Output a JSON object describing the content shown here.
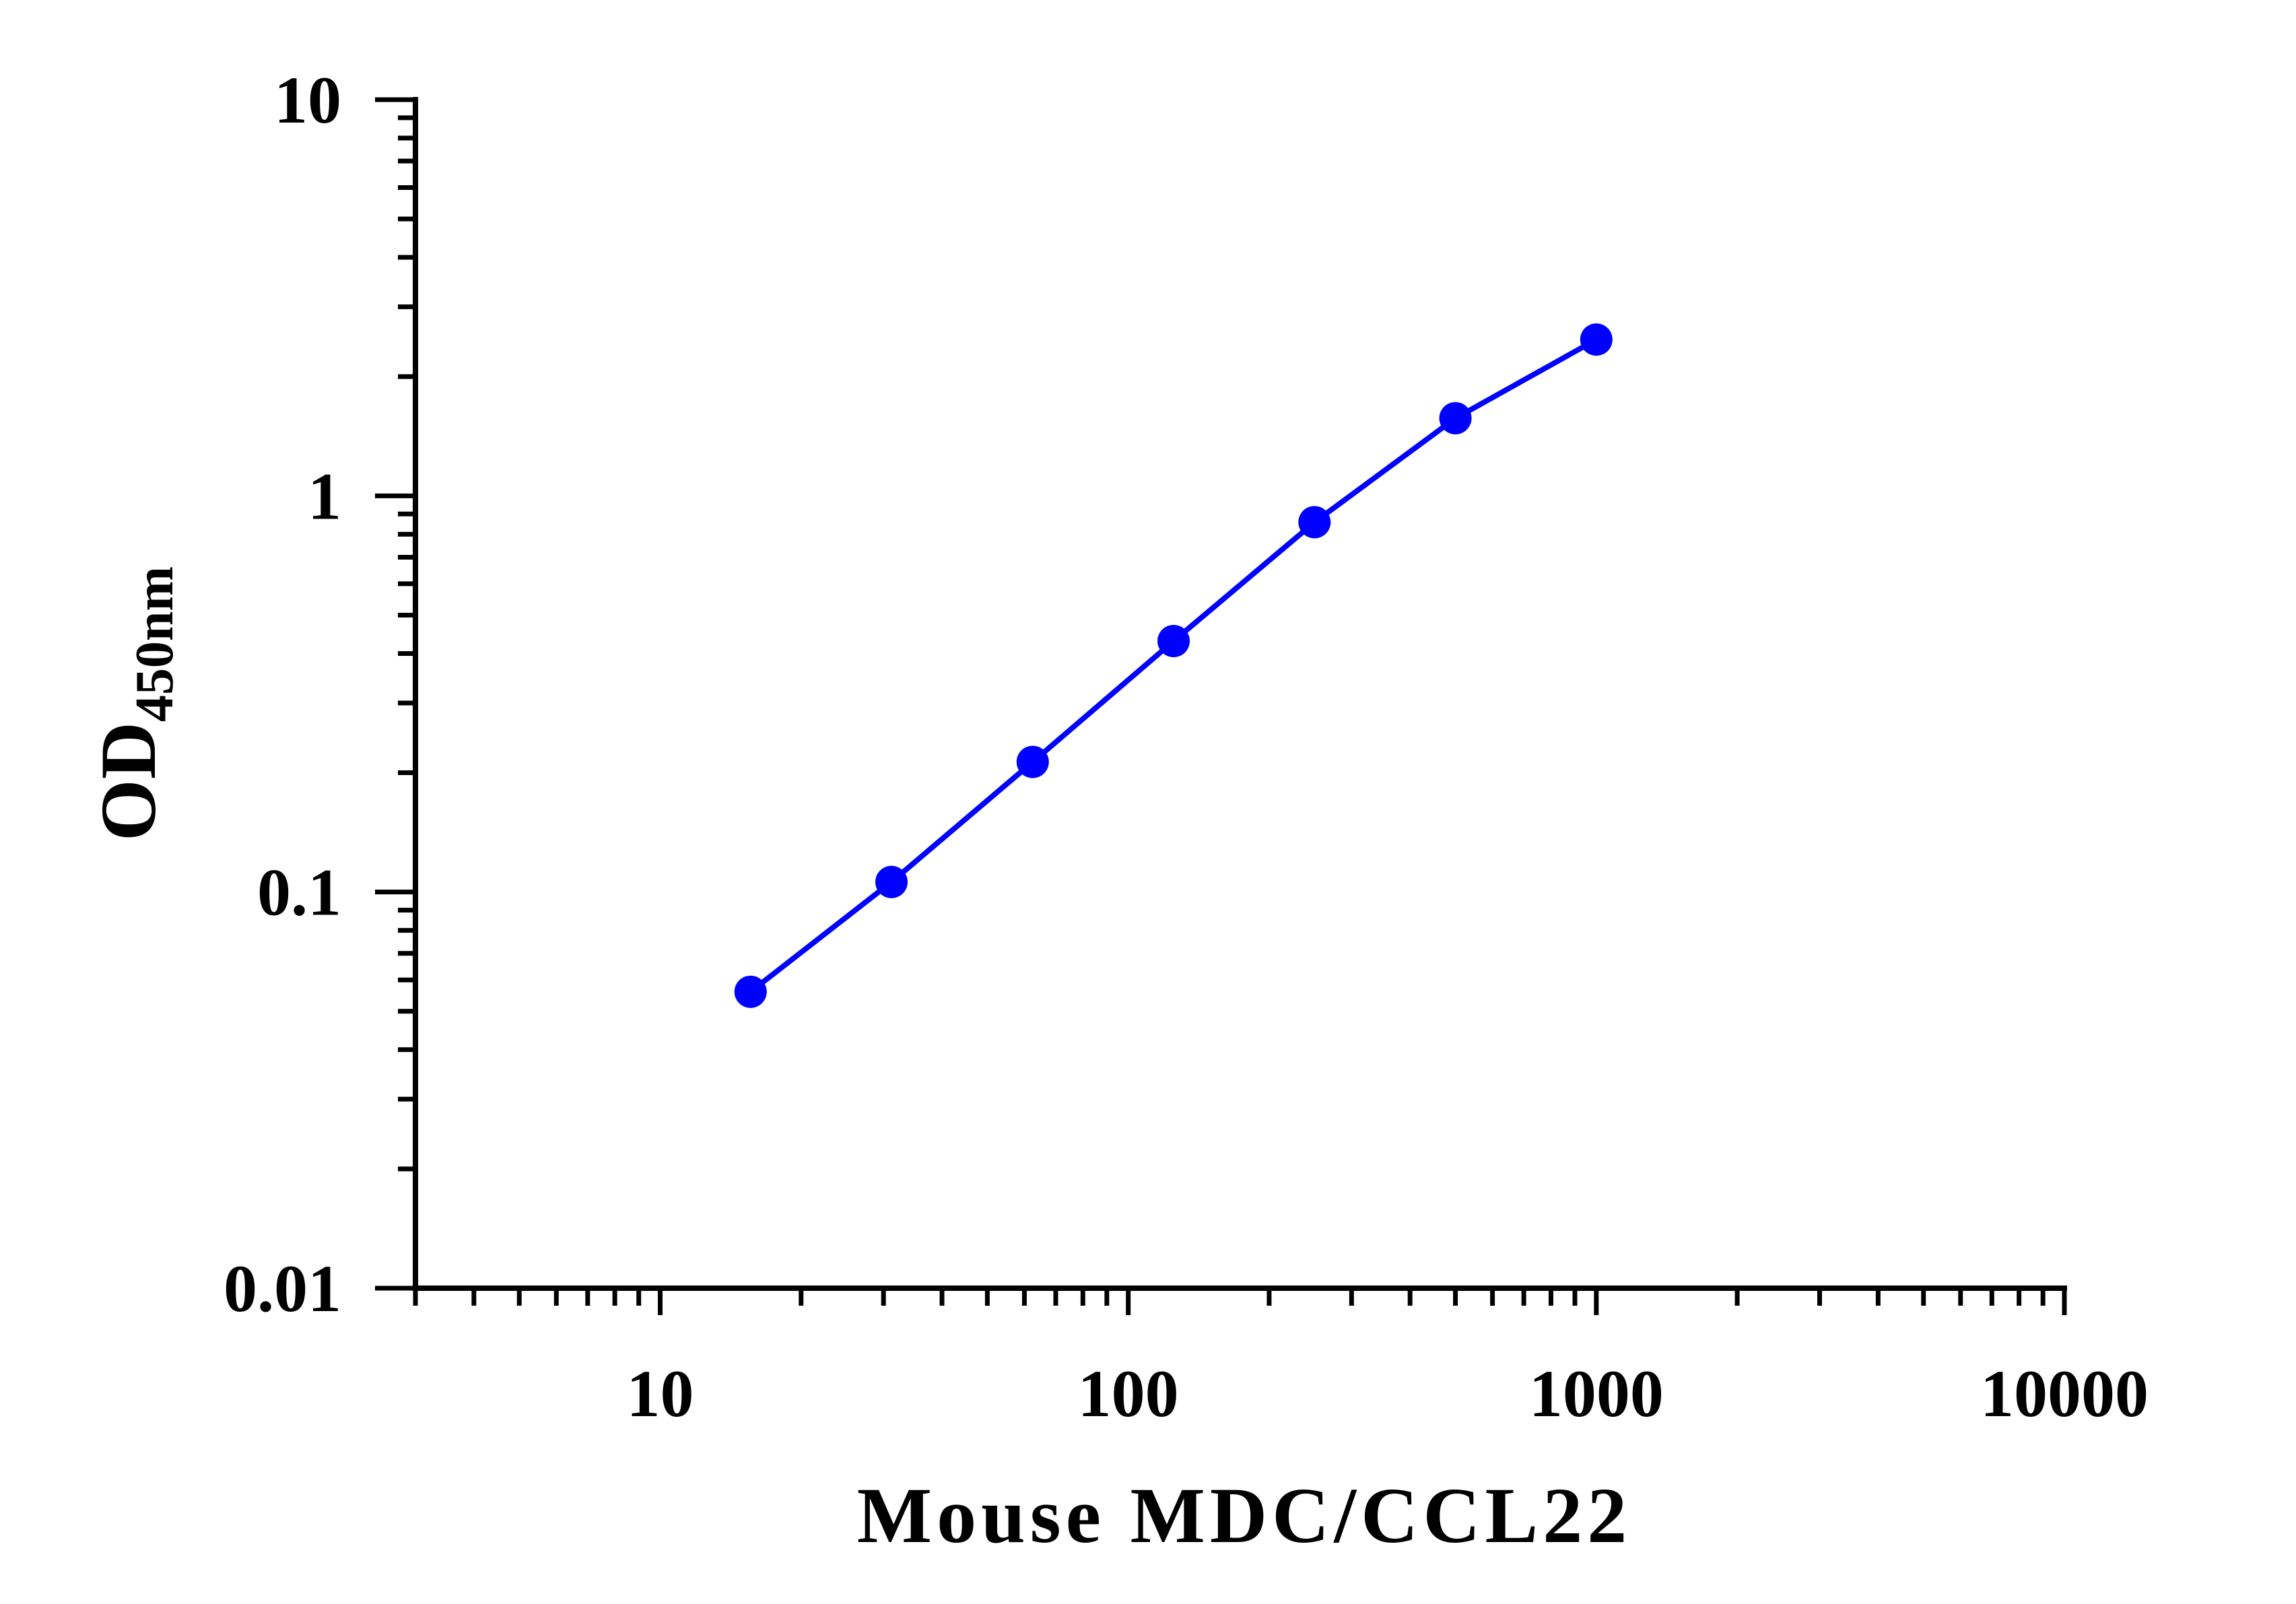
{
  "chart_data": {
    "type": "line",
    "xlabel": "Mouse MDC/CCL22",
    "ylabel": {
      "main": "OD",
      "subscript": "450nm"
    },
    "x_scale": "log",
    "y_scale": "log",
    "xlim": [
      3,
      10000
    ],
    "ylim": [
      0.01,
      10
    ],
    "x_ticks": [
      "10",
      "100",
      "1000",
      "10000"
    ],
    "y_ticks": [
      "0.01",
      "0.1",
      "1",
      "10"
    ],
    "grid": false,
    "legend": "none",
    "series": [
      {
        "color": "#0000ff",
        "marker": "circle",
        "x": [
          15.6,
          31.2,
          62.5,
          125,
          250,
          500,
          1000
        ],
        "y": [
          0.056,
          0.106,
          0.213,
          0.43,
          0.858,
          1.57,
          2.48
        ]
      }
    ]
  }
}
